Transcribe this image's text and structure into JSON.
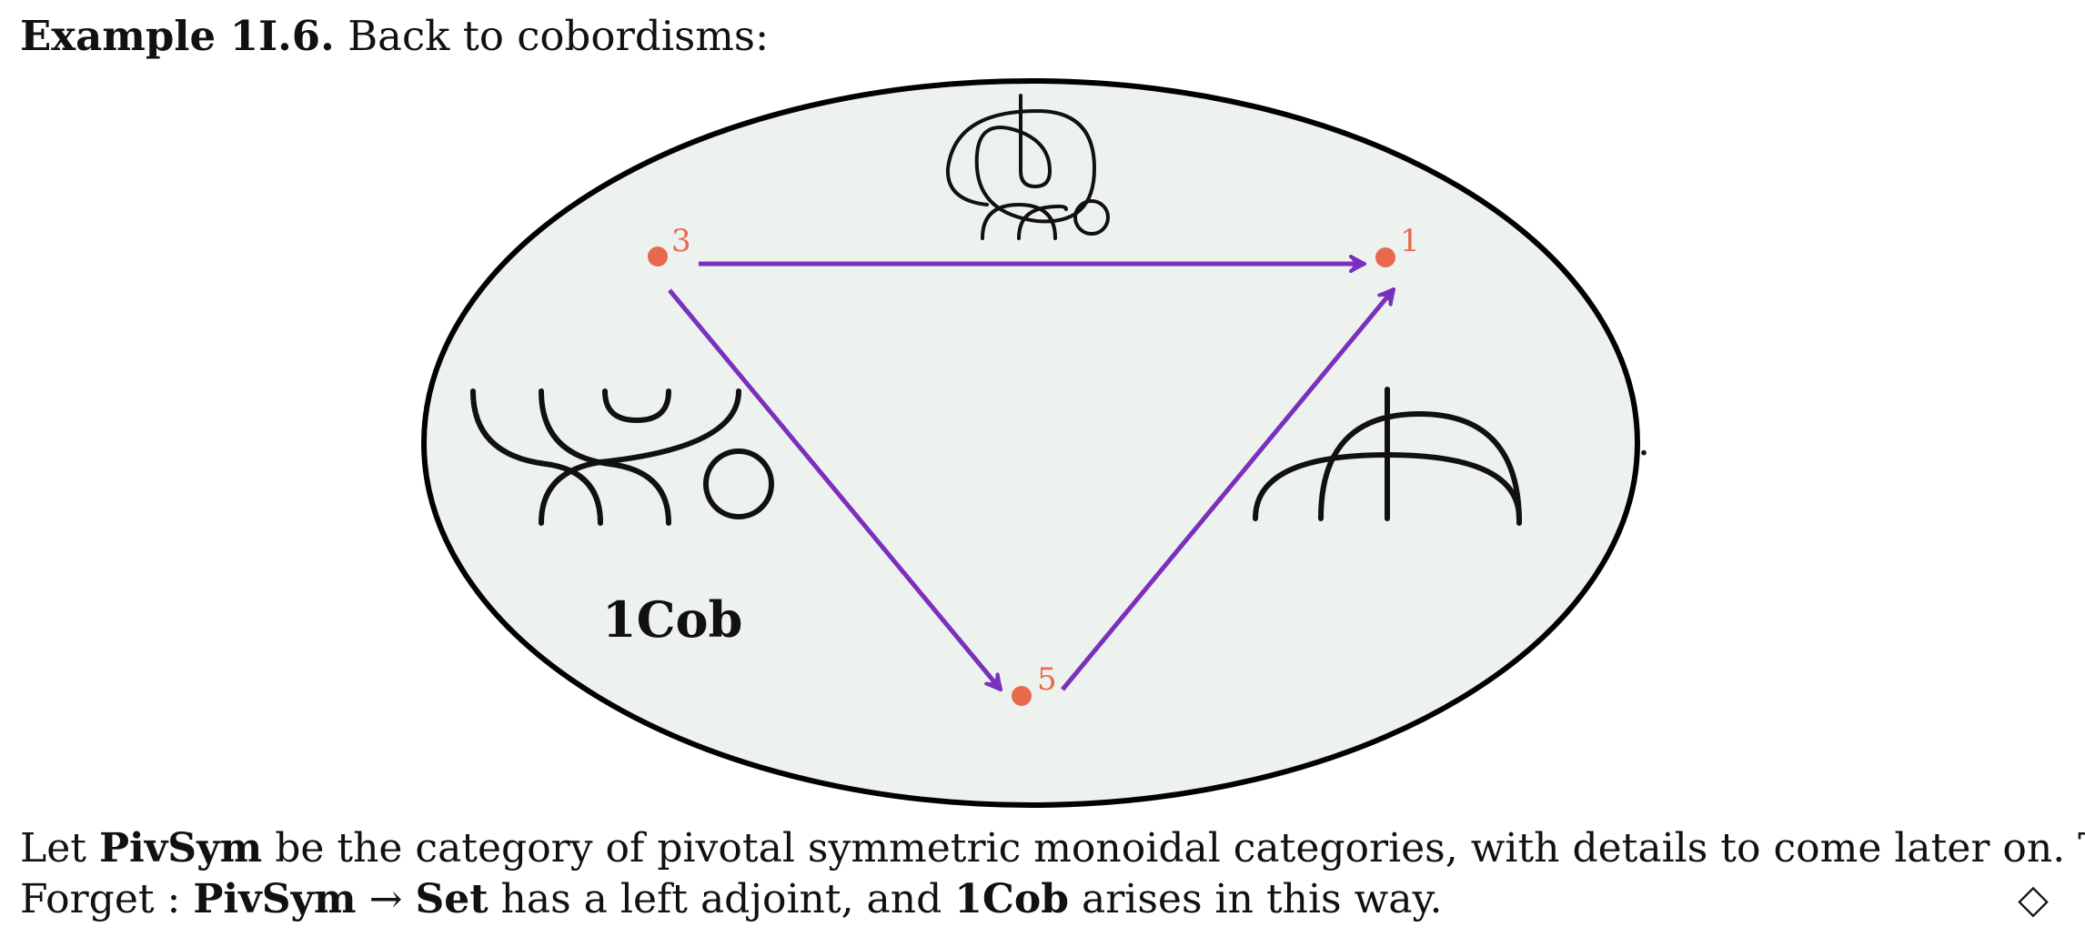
{
  "heading": {
    "label": "Example 1I.6.",
    "text": "Back to cobordisms:"
  },
  "figure": {
    "category_name": "1Cob",
    "nodes": [
      {
        "id": "3",
        "label": "3"
      },
      {
        "id": "1",
        "label": "1"
      },
      {
        "id": "5",
        "label": "5"
      }
    ],
    "trailing_punctuation": ".",
    "colors": {
      "ellipse_fill": "#edf2ee",
      "ellipse_stroke": "#000000",
      "node": "#e8694d",
      "arrow": "#7b2fbe",
      "diagram_stroke": "#111111"
    }
  },
  "paragraph": {
    "line1": {
      "t1": "Let ",
      "b1": "PivSym",
      "t2": " be the category of pivotal symmetric monoidal categories, with details to come later on. Then"
    },
    "line2": {
      "t1": "Forget : ",
      "b1": "PivSym",
      "t2": " → ",
      "b2": "Set",
      "t3": " has a left adjoint, and ",
      "b3": "1Cob",
      "t4": " arises in this way."
    },
    "end_mark": "◇"
  }
}
